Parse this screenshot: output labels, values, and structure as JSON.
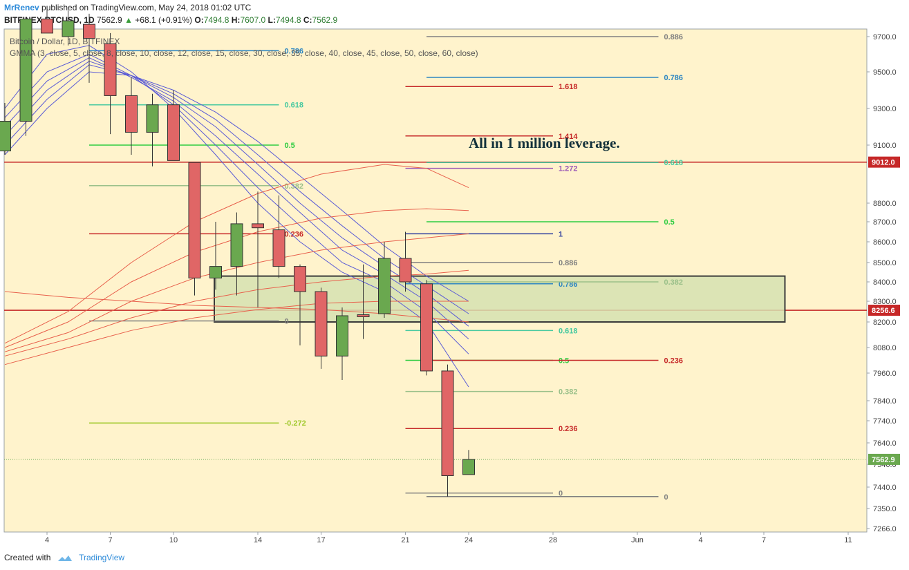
{
  "header": {
    "author": "MrRenev",
    "published": "published on TradingView.com, May 24, 2018 01:02 UTC",
    "symbol": "BITFINEX:BTCUSD, 1D",
    "last": "7562.9",
    "arrow": "▲",
    "change": "+68.1 (+0.91%)",
    "o_label": "O:",
    "o_val": "7494.8",
    "h_label": "H:",
    "h_val": "7607.0",
    "l_label": "L:",
    "l_val": "7494.8",
    "c_label": "C:",
    "c_val": "7562.9"
  },
  "overlay": {
    "title": "Bitcoin / Dollar, 1D, BITFINEX",
    "indicator": "GMMA (3, close, 5, close, 8, close, 10, close, 12, close, 15, close, 30, close, 35, close, 40, close, 45, close, 50, close, 60, close)",
    "annotation": "All in 1 million leverage."
  },
  "footer": {
    "created": "Created with",
    "brand": "TradingView"
  },
  "colors": {
    "background": "#fff3cc",
    "up": "#6aa84f",
    "down": "#e06666",
    "fast_ma": "#5a5ad6",
    "slow_ma": "#e8604c",
    "hline": "#c62828",
    "zone": "#d6e0b0"
  },
  "chart_data": {
    "type": "candlestick",
    "y_axis": {
      "ticks": [
        9700.0,
        9500.0,
        9300.0,
        9100.0,
        8800.0,
        8700.0,
        8600.0,
        8500.0,
        8400.0,
        8300.0,
        8200.0,
        8080.0,
        7960.0,
        7840.0,
        7740.0,
        7640.0,
        7540.0,
        7440.0,
        7350.0,
        7266.0
      ],
      "tick_labels": [
        "9700.0",
        "9500.0",
        "9300.0",
        "9100.0",
        "8800.0",
        "8700.0",
        "8600.0",
        "8500.0",
        "8400.0",
        "8300.0",
        "8200.0",
        "8080.0",
        "7960.0",
        "7840.0",
        "7740.0",
        "7640.0",
        "7540.0",
        "7440.0",
        "7350.0",
        "7266.0"
      ]
    },
    "x_axis": {
      "tick_days": [
        4,
        7,
        10,
        14,
        17,
        21,
        24,
        28,
        32,
        35,
        38,
        42
      ],
      "tick_labels": [
        "4",
        "7",
        "10",
        "14",
        "17",
        "21",
        "24",
        "28",
        "Jun",
        "4",
        "7",
        "11"
      ]
    },
    "candles": [
      {
        "day": 2,
        "o": 9070,
        "h": 9330,
        "l": 9050,
        "c": 9230
      },
      {
        "day": 3,
        "o": 9230,
        "h": 9800,
        "l": 9150,
        "c": 9800
      },
      {
        "day": 4,
        "o": 9800,
        "h": 9860,
        "l": 9720,
        "c": 9720
      },
      {
        "day": 5,
        "o": 9700,
        "h": 9850,
        "l": 9650,
        "c": 9790
      },
      {
        "day": 6,
        "o": 9770,
        "h": 9830,
        "l": 9440,
        "c": 9690
      },
      {
        "day": 7,
        "o": 9660,
        "h": 9720,
        "l": 9160,
        "c": 9370
      },
      {
        "day": 8,
        "o": 9370,
        "h": 9470,
        "l": 9050,
        "c": 9170
      },
      {
        "day": 9,
        "o": 9170,
        "h": 9380,
        "l": 8990,
        "c": 9320
      },
      {
        "day": 10,
        "o": 9320,
        "h": 9400,
        "l": 9020,
        "c": 9020
      },
      {
        "day": 11,
        "o": 9010,
        "h": 9010,
        "l": 8330,
        "c": 8420
      },
      {
        "day": 12,
        "o": 8420,
        "h": 8700,
        "l": 8360,
        "c": 8480
      },
      {
        "day": 13,
        "o": 8480,
        "h": 8750,
        "l": 8330,
        "c": 8690
      },
      {
        "day": 14,
        "o": 8690,
        "h": 8860,
        "l": 8270,
        "c": 8670
      },
      {
        "day": 15,
        "o": 8660,
        "h": 8840,
        "l": 8420,
        "c": 8480
      },
      {
        "day": 16,
        "o": 8480,
        "h": 8490,
        "l": 8090,
        "c": 8350
      },
      {
        "day": 17,
        "o": 8350,
        "h": 8370,
        "l": 7980,
        "c": 8040
      },
      {
        "day": 18,
        "o": 8040,
        "h": 8270,
        "l": 7930,
        "c": 8230
      },
      {
        "day": 19,
        "o": 8235,
        "h": 8490,
        "l": 8120,
        "c": 8225
      },
      {
        "day": 20,
        "o": 8240,
        "h": 8600,
        "l": 8220,
        "c": 8520
      },
      {
        "day": 21,
        "o": 8520,
        "h": 8650,
        "l": 8350,
        "c": 8400
      },
      {
        "day": 22,
        "o": 8390,
        "h": 8410,
        "l": 7950,
        "c": 7970
      },
      {
        "day": 23,
        "o": 7970,
        "h": 8000,
        "l": 7400,
        "c": 7490
      },
      {
        "day": 24,
        "o": 7495,
        "h": 7607,
        "l": 7495,
        "c": 7563
      }
    ],
    "price_labels": [
      {
        "value": 9012.0,
        "label": "9012.0",
        "color": "#c62828"
      },
      {
        "value": 8256.6,
        "label": "8256.6",
        "color": "#c62828"
      },
      {
        "value": 7562.9,
        "label": "7562.9",
        "color": "#6aa84f"
      }
    ],
    "zone": {
      "day_from": 12,
      "day_to": 39,
      "top": 8430,
      "bottom": 8200
    },
    "fib_levels": [
      {
        "label": "0.786",
        "value": 9620,
        "color": "#2e86c1",
        "day_from": 6,
        "day_to": 15
      },
      {
        "label": "0.618",
        "value": 9320,
        "color": "#48c9a0",
        "day_from": 6,
        "day_to": 15
      },
      {
        "label": "0.5",
        "value": 9100,
        "color": "#2ecc40",
        "day_from": 6,
        "day_to": 15
      },
      {
        "label": "0.382",
        "value": 8890,
        "color": "#9bc08a",
        "day_from": 6,
        "day_to": 15
      },
      {
        "label": "0.236",
        "value": 8640,
        "color": "#c62828",
        "day_from": 6,
        "day_to": 15
      },
      {
        "label": "0",
        "value": 8205,
        "color": "#808080",
        "day_from": 6,
        "day_to": 15
      },
      {
        "label": "-0.272",
        "value": 7730,
        "color": "#a0c82c",
        "day_from": 6,
        "day_to": 15
      },
      {
        "label": "1.618",
        "value": 9420,
        "color": "#c62828",
        "day_from": 21,
        "day_to": 28
      },
      {
        "label": "1.414",
        "value": 9150,
        "color": "#c62828",
        "day_from": 21,
        "day_to": 28
      },
      {
        "label": "1.272",
        "value": 8980,
        "color": "#9b59b6",
        "day_from": 21,
        "day_to": 28
      },
      {
        "label": "1",
        "value": 8640,
        "color": "#303f9f",
        "day_from": 21,
        "day_to": 28
      },
      {
        "label": "0.886",
        "value": 8500,
        "color": "#808080",
        "day_from": 21,
        "day_to": 28
      },
      {
        "label": "0.786",
        "value": 8390,
        "color": "#2e86c1",
        "day_from": 21,
        "day_to": 28
      },
      {
        "label": "0.618",
        "value": 8160,
        "color": "#48c9a0",
        "day_from": 21,
        "day_to": 28
      },
      {
        "label": "0.5",
        "value": 8020,
        "color": "#2ecc40",
        "day_from": 21,
        "day_to": 28
      },
      {
        "label": "0.382",
        "value": 7880,
        "color": "#9bc08a",
        "day_from": 21,
        "day_to": 28
      },
      {
        "label": "0.236",
        "value": 7705,
        "color": "#c62828",
        "day_from": 21,
        "day_to": 28
      },
      {
        "label": "0",
        "value": 7415,
        "color": "#808080",
        "day_from": 21,
        "day_to": 28
      },
      {
        "label": "0.886",
        "value": 9700,
        "color": "#808080",
        "day_from": 22,
        "day_to": 33
      },
      {
        "label": "0.786",
        "value": 9470,
        "color": "#2e86c1",
        "day_from": 22,
        "day_to": 33
      },
      {
        "label": "0.618",
        "value": 9010,
        "color": "#48c9a0",
        "day_from": 22,
        "day_to": 33
      },
      {
        "label": "0.5",
        "value": 8700,
        "color": "#2ecc40",
        "day_from": 22,
        "day_to": 33
      },
      {
        "label": "0.382",
        "value": 8400,
        "color": "#9bc08a",
        "day_from": 22,
        "day_to": 33
      },
      {
        "label": "0.236",
        "value": 8020,
        "color": "#c62828",
        "day_from": 22,
        "day_to": 33
      },
      {
        "label": "0",
        "value": 7400,
        "color": "#808080",
        "day_from": 22,
        "day_to": 33
      }
    ],
    "ma_fast": [
      {
        "pts": [
          [
            2,
            9300
          ],
          [
            4,
            9600
          ],
          [
            6,
            9650
          ],
          [
            8,
            9500
          ],
          [
            10,
            9300
          ],
          [
            12,
            9050
          ],
          [
            14,
            8800
          ],
          [
            16,
            8600
          ],
          [
            18,
            8450
          ],
          [
            20,
            8350
          ],
          [
            22,
            8200
          ],
          [
            24,
            7900
          ]
        ]
      },
      {
        "pts": [
          [
            2,
            9250
          ],
          [
            4,
            9500
          ],
          [
            6,
            9600
          ],
          [
            8,
            9480
          ],
          [
            10,
            9320
          ],
          [
            12,
            9100
          ],
          [
            14,
            8880
          ],
          [
            16,
            8680
          ],
          [
            18,
            8500
          ],
          [
            20,
            8400
          ],
          [
            22,
            8250
          ],
          [
            24,
            8050
          ]
        ]
      },
      {
        "pts": [
          [
            2,
            9200
          ],
          [
            4,
            9450
          ],
          [
            6,
            9580
          ],
          [
            8,
            9470
          ],
          [
            10,
            9340
          ],
          [
            12,
            9150
          ],
          [
            14,
            8950
          ],
          [
            16,
            8750
          ],
          [
            18,
            8560
          ],
          [
            20,
            8440
          ],
          [
            22,
            8300
          ],
          [
            24,
            8120
          ]
        ]
      },
      {
        "pts": [
          [
            2,
            9150
          ],
          [
            4,
            9400
          ],
          [
            6,
            9560
          ],
          [
            8,
            9480
          ],
          [
            10,
            9360
          ],
          [
            12,
            9200
          ],
          [
            14,
            9000
          ],
          [
            16,
            8800
          ],
          [
            18,
            8620
          ],
          [
            20,
            8480
          ],
          [
            22,
            8340
          ],
          [
            24,
            8180
          ]
        ]
      },
      {
        "pts": [
          [
            2,
            9100
          ],
          [
            4,
            9350
          ],
          [
            6,
            9540
          ],
          [
            8,
            9480
          ],
          [
            10,
            9380
          ],
          [
            12,
            9240
          ],
          [
            14,
            9050
          ],
          [
            16,
            8860
          ],
          [
            18,
            8680
          ],
          [
            20,
            8520
          ],
          [
            22,
            8380
          ],
          [
            24,
            8240
          ]
        ]
      },
      {
        "pts": [
          [
            2,
            9050
          ],
          [
            4,
            9300
          ],
          [
            6,
            9500
          ],
          [
            8,
            9480
          ],
          [
            10,
            9400
          ],
          [
            12,
            9280
          ],
          [
            14,
            9120
          ],
          [
            16,
            8940
          ],
          [
            18,
            8760
          ],
          [
            20,
            8580
          ],
          [
            22,
            8430
          ],
          [
            24,
            8300
          ]
        ]
      }
    ],
    "ma_slow": [
      {
        "pts": [
          [
            2,
            8100
          ],
          [
            5,
            8250
          ],
          [
            8,
            8500
          ],
          [
            11,
            8700
          ],
          [
            14,
            8850
          ],
          [
            17,
            8950
          ],
          [
            20,
            9000
          ],
          [
            22,
            8980
          ],
          [
            24,
            8880
          ]
        ]
      },
      {
        "pts": [
          [
            2,
            8080
          ],
          [
            5,
            8200
          ],
          [
            8,
            8400
          ],
          [
            11,
            8550
          ],
          [
            14,
            8650
          ],
          [
            17,
            8720
          ],
          [
            20,
            8760
          ],
          [
            22,
            8770
          ],
          [
            24,
            8760
          ]
        ]
      },
      {
        "pts": [
          [
            2,
            8060
          ],
          [
            5,
            8150
          ],
          [
            8,
            8300
          ],
          [
            11,
            8420
          ],
          [
            14,
            8500
          ],
          [
            17,
            8560
          ],
          [
            20,
            8600
          ],
          [
            22,
            8620
          ],
          [
            24,
            8640
          ]
        ]
      },
      {
        "pts": [
          [
            2,
            8040
          ],
          [
            5,
            8120
          ],
          [
            8,
            8220
          ],
          [
            11,
            8300
          ],
          [
            14,
            8360
          ],
          [
            17,
            8400
          ],
          [
            20,
            8430
          ],
          [
            22,
            8440
          ],
          [
            24,
            8460
          ]
        ]
      },
      {
        "pts": [
          [
            2,
            8000
          ],
          [
            5,
            8080
          ],
          [
            8,
            8160
          ],
          [
            11,
            8220
          ],
          [
            14,
            8260
          ],
          [
            17,
            8290
          ],
          [
            20,
            8300
          ],
          [
            22,
            8300
          ],
          [
            24,
            8300
          ]
        ]
      },
      {
        "pts": [
          [
            2,
            8350
          ],
          [
            5,
            8320
          ],
          [
            8,
            8300
          ],
          [
            11,
            8280
          ],
          [
            14,
            8270
          ],
          [
            17,
            8260
          ],
          [
            20,
            8240
          ],
          [
            22,
            8220
          ],
          [
            24,
            8200
          ]
        ]
      }
    ]
  }
}
